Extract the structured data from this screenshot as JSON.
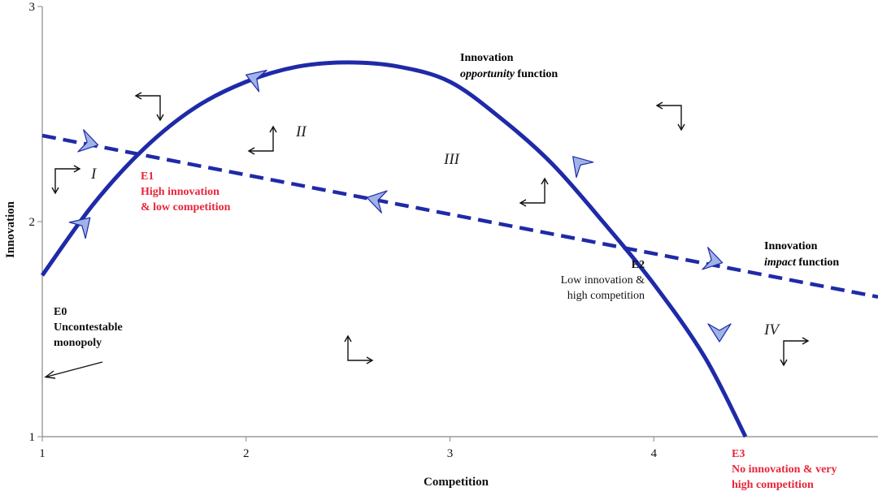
{
  "chart_data": {
    "type": "line",
    "xlabel": "Competition",
    "ylabel": "Innovation",
    "xlim": [
      1,
      5.1
    ],
    "ylim": [
      1,
      3
    ],
    "x_ticks": [
      "1",
      "2",
      "3",
      "4"
    ],
    "y_ticks": [
      "1",
      "2",
      "3"
    ],
    "series": [
      {
        "key": "opportunity",
        "style": "solid",
        "x": [
          1.0,
          1.25,
          1.5,
          1.75,
          2.0,
          2.25,
          2.5,
          2.75,
          3.0,
          3.25,
          3.5,
          3.75,
          4.0,
          4.25,
          4.45
        ],
        "y": [
          1.75,
          2.08,
          2.34,
          2.53,
          2.65,
          2.72,
          2.74,
          2.72,
          2.65,
          2.48,
          2.27,
          2.0,
          1.71,
          1.37,
          1.0
        ],
        "label_lines": [
          [
            {
              "text": "Innovation",
              "bold": true,
              "italic": false
            }
          ],
          [
            {
              "text": "opportunity",
              "bold": true,
              "italic": true
            },
            {
              "text": " function",
              "bold": true,
              "italic": false
            }
          ]
        ]
      },
      {
        "key": "impact",
        "style": "dashed",
        "x": [
          1.0,
          5.1
        ],
        "y": [
          2.4,
          1.65
        ],
        "label_lines": [
          [
            {
              "text": "Innovation",
              "bold": true,
              "italic": false
            }
          ],
          [
            {
              "text": "impact",
              "bold": true,
              "italic": true
            },
            {
              "text": " function",
              "bold": true,
              "italic": false
            }
          ]
        ]
      }
    ],
    "equilibria": [
      {
        "key": "e0",
        "x": 1.0,
        "y": 1.28,
        "color": "#111111",
        "bold": true,
        "lines": [
          "E0",
          "Uncontestable",
          "monopoly"
        ]
      },
      {
        "key": "e1",
        "x": 1.5,
        "y": 2.31,
        "color": "#e8253a",
        "bold": true,
        "lines": [
          "E1",
          "High innovation",
          "& low competition"
        ]
      },
      {
        "key": "e2",
        "x": 3.9,
        "y": 1.84,
        "color": "#111111",
        "bold": false,
        "lines": [
          "E2",
          "Low innovation &",
          "high competition"
        ]
      },
      {
        "key": "e3",
        "x": 4.45,
        "y": 1.0,
        "color": "#e8253a",
        "bold": true,
        "lines": [
          "E3",
          "No innovation & very",
          "high competition"
        ]
      }
    ],
    "regions": [
      {
        "label": "I",
        "x": 1.25,
        "y": 2.22
      },
      {
        "label": "II",
        "x": 2.22,
        "y": 2.41
      },
      {
        "label": "III",
        "x": 2.95,
        "y": 2.28
      },
      {
        "label": "IV",
        "x": 4.4,
        "y": 1.5
      }
    ],
    "colors": {
      "curve": "#1f2aa8",
      "arrowhead": "#9fb4e6",
      "arrowhead_stroke": "#1f2aa8",
      "axis": "#888888"
    }
  }
}
